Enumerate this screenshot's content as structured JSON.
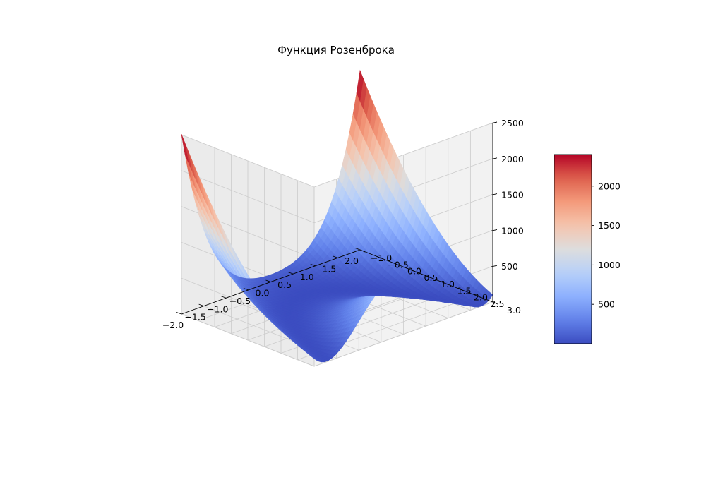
{
  "chart_data": {
    "type": "surface",
    "title": "Функция Розенброка",
    "function": "(1 - x)^2 + 100 * (y - x^2)^2",
    "colormap": "coolwarm",
    "grid": true,
    "x": {
      "range": [
        -2.0,
        2.0
      ],
      "ticks": [
        "−2.0",
        "−1.5",
        "−1.0",
        "−0.5",
        "0.0",
        "0.5",
        "1.0",
        "1.5",
        "2.0"
      ],
      "tick_values": [
        -2.0,
        -1.5,
        -1.0,
        -0.5,
        0.0,
        0.5,
        1.0,
        1.5,
        2.0
      ]
    },
    "y": {
      "range": [
        -1.0,
        3.0
      ],
      "ticks": [
        "−1.0",
        "−0.5",
        "0.0",
        "0.5",
        "1.0",
        "1.5",
        "2.0",
        "2.5",
        "3.0"
      ],
      "tick_values": [
        -1.0,
        -0.5,
        0.0,
        0.5,
        1.0,
        1.5,
        2.0,
        2.5,
        3.0
      ]
    },
    "z": {
      "range": [
        0,
        2500
      ],
      "ticks": [
        "500",
        "1000",
        "1500",
        "2000",
        "2500"
      ],
      "tick_values": [
        500,
        1000,
        1500,
        2000,
        2500
      ]
    },
    "colorbar": {
      "range": [
        0,
        2401
      ],
      "ticks": [
        "500",
        "1000",
        "1500",
        "2000"
      ],
      "tick_values": [
        500,
        1000,
        1500,
        2000
      ]
    },
    "colors": {
      "low": "#3b4cc0",
      "mid": "#dddddd",
      "high": "#b40426",
      "pane": "#f2f2f2",
      "grid": "#cccccc"
    }
  }
}
